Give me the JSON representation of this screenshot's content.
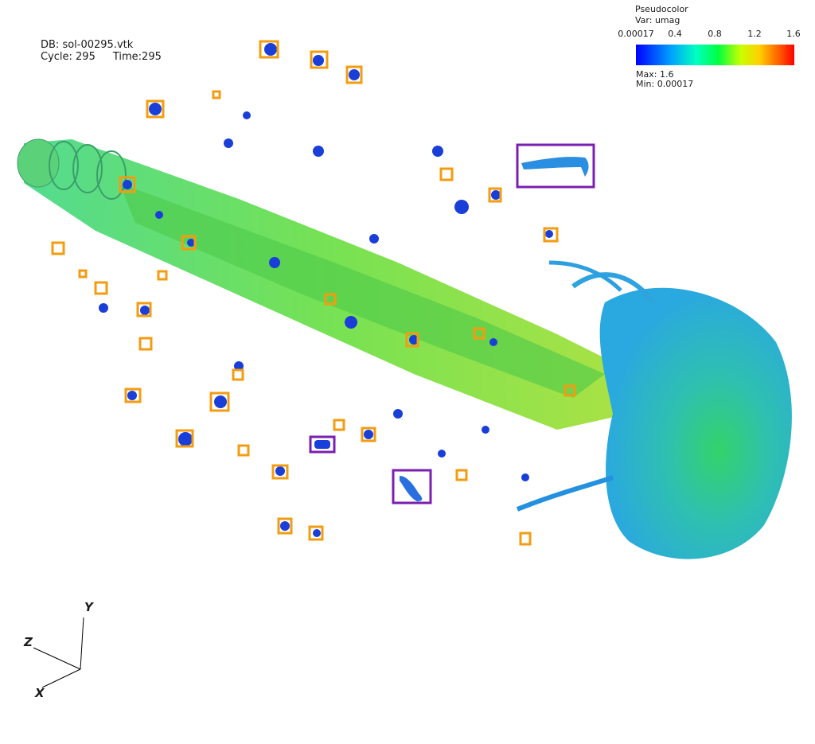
{
  "db_info": {
    "db": "DB: sol-00295.vtk",
    "cycle": "Cycle: 295",
    "time": "Time:295"
  },
  "legend": {
    "title": "Pseudocolor",
    "variable": "Var: umag",
    "ticks": [
      "0.00017",
      "0.4",
      "0.8",
      "1.2",
      "1.6"
    ],
    "max": "Max: 1.6",
    "min": "Min: 0.00017",
    "colors": [
      "#0000ff",
      "#00a0ff",
      "#00ffc0",
      "#00ff40",
      "#c8ff00",
      "#ffd000",
      "#ff6000",
      "#ff0000"
    ]
  },
  "axes": {
    "x": "X",
    "y": "Y",
    "z": "Z"
  },
  "annotation_colors": {
    "orange": "#f39c12",
    "purple": "#7a1fb0"
  }
}
